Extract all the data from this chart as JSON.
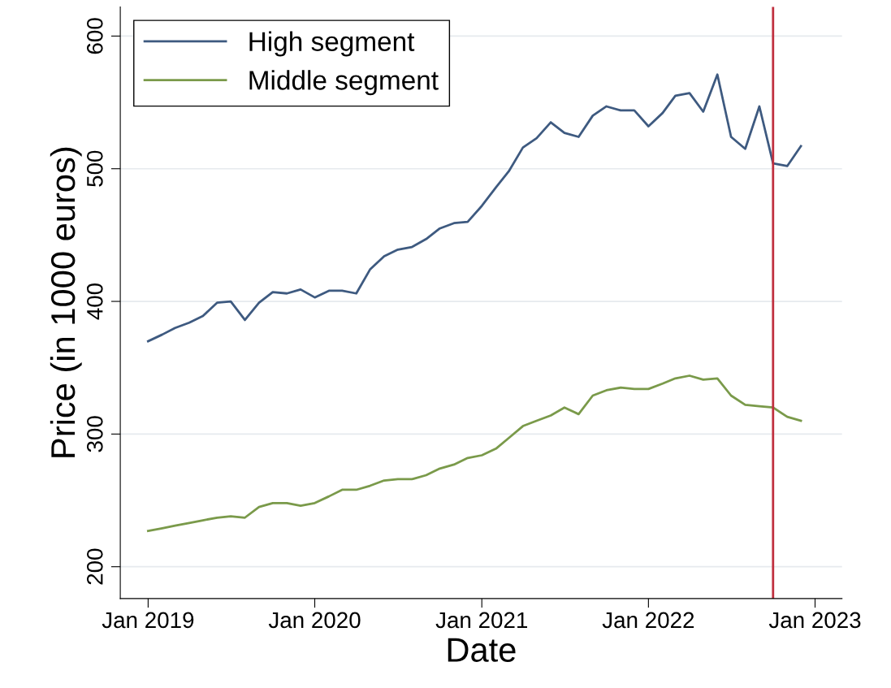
{
  "chart_data": {
    "type": "line",
    "xlabel": "Date",
    "ylabel": "Price (in 1000 euros)",
    "x": [
      "2019-01",
      "2019-02",
      "2019-03",
      "2019-04",
      "2019-05",
      "2019-06",
      "2019-07",
      "2019-08",
      "2019-09",
      "2019-10",
      "2019-11",
      "2019-12",
      "2020-01",
      "2020-02",
      "2020-03",
      "2020-04",
      "2020-05",
      "2020-06",
      "2020-07",
      "2020-08",
      "2020-09",
      "2020-10",
      "2020-11",
      "2020-12",
      "2021-01",
      "2021-02",
      "2021-03",
      "2021-04",
      "2021-05",
      "2021-06",
      "2021-07",
      "2021-08",
      "2021-09",
      "2021-10",
      "2021-11",
      "2021-12",
      "2022-01",
      "2022-02",
      "2022-03",
      "2022-04",
      "2022-05",
      "2022-06",
      "2022-07",
      "2022-08",
      "2022-09",
      "2022-10",
      "2022-11",
      "2022-12"
    ],
    "series": [
      {
        "name": "High segment",
        "color": "#3e5a80",
        "values": [
          370,
          375,
          380,
          384,
          389,
          399,
          400,
          386,
          399,
          407,
          406,
          409,
          403,
          408,
          408,
          406,
          424,
          434,
          439,
          441,
          447,
          455,
          459,
          460,
          472,
          486,
          498,
          516,
          523,
          535,
          527,
          524,
          540,
          547,
          544,
          544,
          532,
          542,
          555,
          557,
          543,
          571,
          524,
          515,
          547,
          504,
          502,
          517
        ]
      },
      {
        "name": "Middle segment",
        "color": "#7a9a4a",
        "values": [
          227,
          229,
          231,
          233,
          235,
          237,
          238,
          237,
          245,
          248,
          248,
          246,
          248,
          253,
          258,
          258,
          261,
          265,
          266,
          266,
          269,
          274,
          277,
          282,
          284,
          289,
          297,
          306,
          310,
          314,
          320,
          315,
          329,
          333,
          335,
          334,
          334,
          338,
          342,
          344,
          341,
          342,
          329,
          322,
          321,
          320,
          313,
          310
        ]
      }
    ],
    "xlim": [
      "2018-11",
      "2023-03"
    ],
    "xticks": [
      {
        "value": "2019-01",
        "label": "Jan 2019"
      },
      {
        "value": "2020-01",
        "label": "Jan 2020"
      },
      {
        "value": "2021-01",
        "label": "Jan 2021"
      },
      {
        "value": "2022-01",
        "label": "Jan 2022"
      },
      {
        "value": "2023-01",
        "label": "Jan 2023"
      }
    ],
    "ylim": [
      176,
      622
    ],
    "yticks": [
      200,
      300,
      400,
      500,
      600
    ],
    "ref_lines": [
      {
        "axis": "x",
        "value": "2022-10",
        "color": "#c0303f"
      }
    ],
    "grid": "y",
    "legend": "top left",
    "line_style": "solid",
    "marker": "none"
  }
}
